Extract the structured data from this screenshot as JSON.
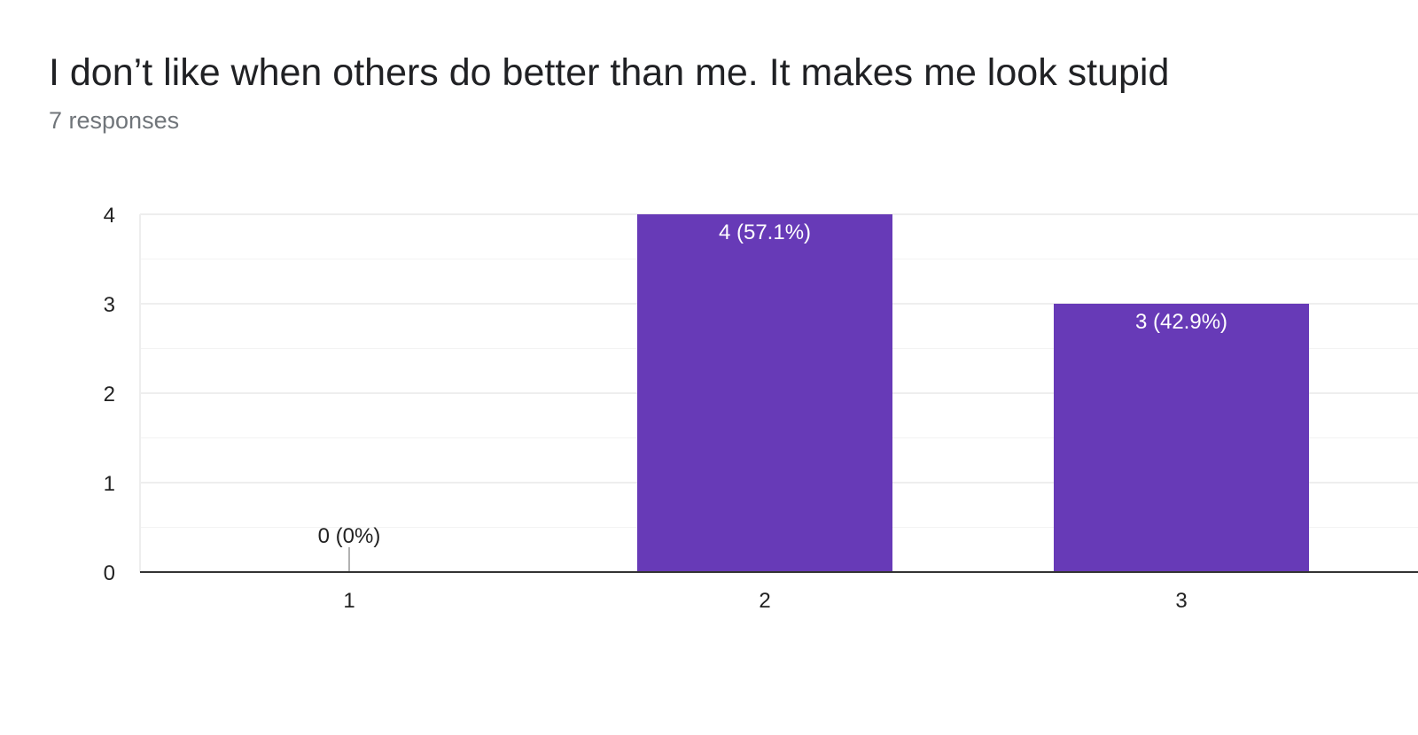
{
  "chart_data": {
    "type": "bar",
    "title": "I don’t like when others do better than me. It makes me look stupid",
    "subtitle": "7 responses",
    "categories": [
      "1",
      "2",
      "3"
    ],
    "values": [
      0,
      4,
      3
    ],
    "data_labels": [
      "0 (0%)",
      "4 (57.1%)",
      "3 (42.9%)"
    ],
    "ylim": [
      0,
      4
    ],
    "yticks": [
      "0",
      "1",
      "2",
      "3",
      "4"
    ],
    "xlabel": "",
    "ylabel": "",
    "grid": true,
    "bar_color": "#673ab7",
    "gridline_color": "#eeeeee",
    "axis_color": "#333333"
  }
}
